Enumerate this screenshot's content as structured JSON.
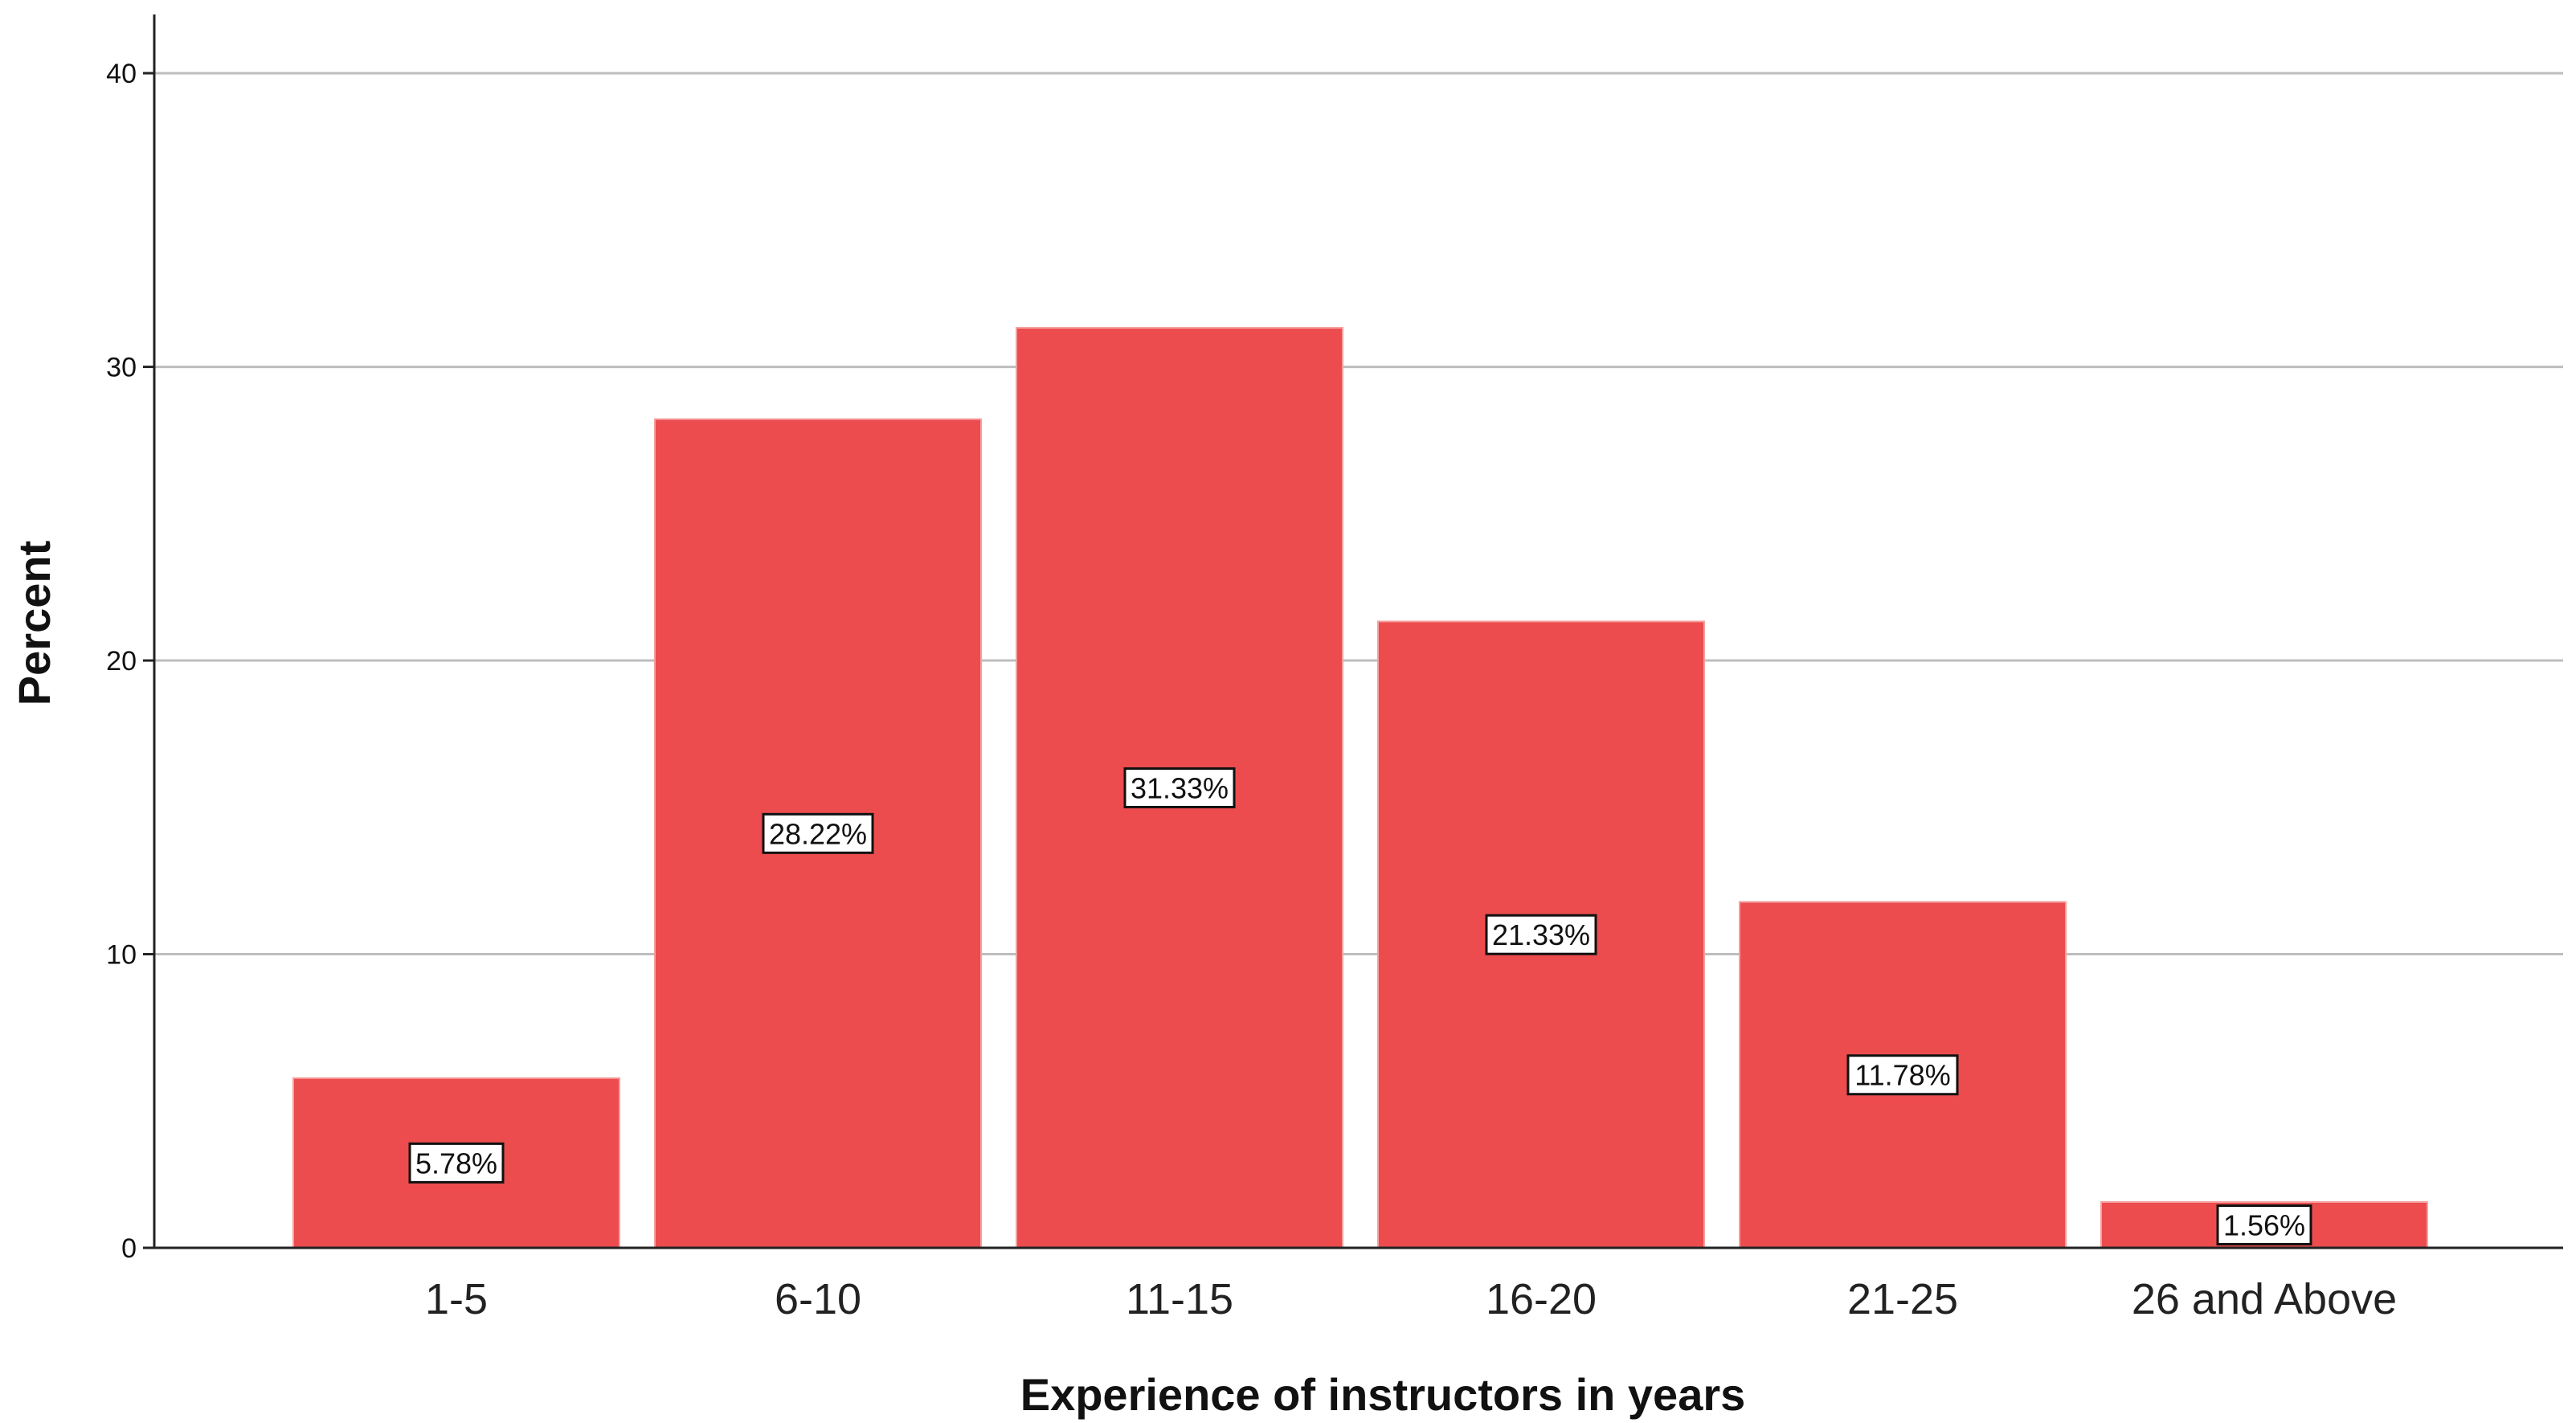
{
  "chart_data": {
    "type": "bar",
    "title": "",
    "xlabel": "Experience of instructors in years",
    "ylabel": "Percent",
    "categories": [
      "1-5",
      "6-10",
      "11-15",
      "16-20",
      "21-25",
      "26 and Above"
    ],
    "values": [
      5.78,
      28.22,
      31.33,
      21.33,
      11.78,
      1.56
    ],
    "data_labels": [
      "5.78%",
      "28.22%",
      "31.33%",
      "21.33%",
      "11.78%",
      "1.56%"
    ],
    "ylim": [
      0,
      42
    ],
    "yticks": [
      0,
      10,
      20,
      30,
      40
    ],
    "grid": true,
    "bar_color": "#EC4C4D",
    "grid_color": "#BDBDBD",
    "axis_color": "#222222"
  }
}
